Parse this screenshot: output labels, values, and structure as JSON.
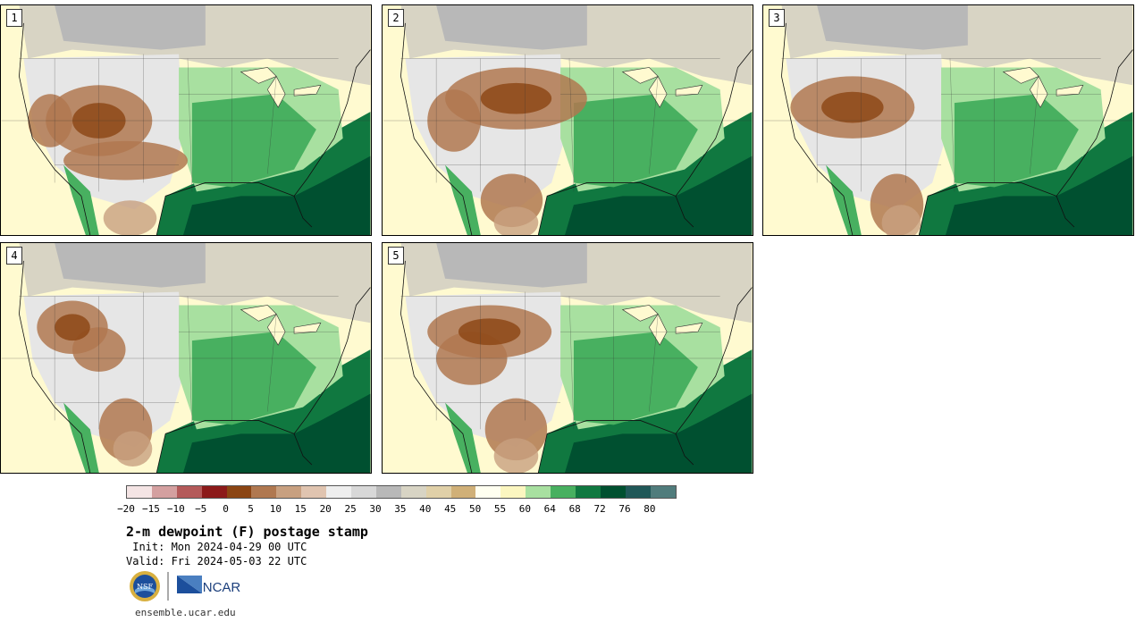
{
  "panels": [
    {
      "label": "1"
    },
    {
      "label": "2"
    },
    {
      "label": "3"
    },
    {
      "label": "4"
    },
    {
      "label": "5"
    }
  ],
  "colorbar": {
    "colors": [
      "#f4e4e4",
      "#d4a0a0",
      "#b45a5a",
      "#8c1a1a",
      "#8b4513",
      "#b07850",
      "#c8a080",
      "#e0c4b0",
      "#eeeeee",
      "#d8d8d8",
      "#b8b8b8",
      "#d8d4c4",
      "#e0d0a8",
      "#d0b078",
      "#fffff0",
      "#fbf6c0",
      "#a8e0a0",
      "#48b060",
      "#107840",
      "#005030",
      "#205858",
      "#507c7c"
    ],
    "ticks": [
      "−20",
      "−15",
      "−10",
      "−5",
      "0",
      "5",
      "10",
      "15",
      "20",
      "25",
      "30",
      "35",
      "40",
      "45",
      "50",
      "55",
      "60",
      "64",
      "68",
      "72",
      "76",
      "80"
    ]
  },
  "header": {
    "title": "2-m dewpoint (F) postage stamp",
    "init": " Init: Mon 2024-04-29 00 UTC",
    "valid": "Valid: Fri 2024-05-03 22 UTC"
  },
  "logos": {
    "nsf": "NSF",
    "ncar": "NCAR"
  },
  "footer": {
    "url": "ensemble.ucar.edu"
  }
}
